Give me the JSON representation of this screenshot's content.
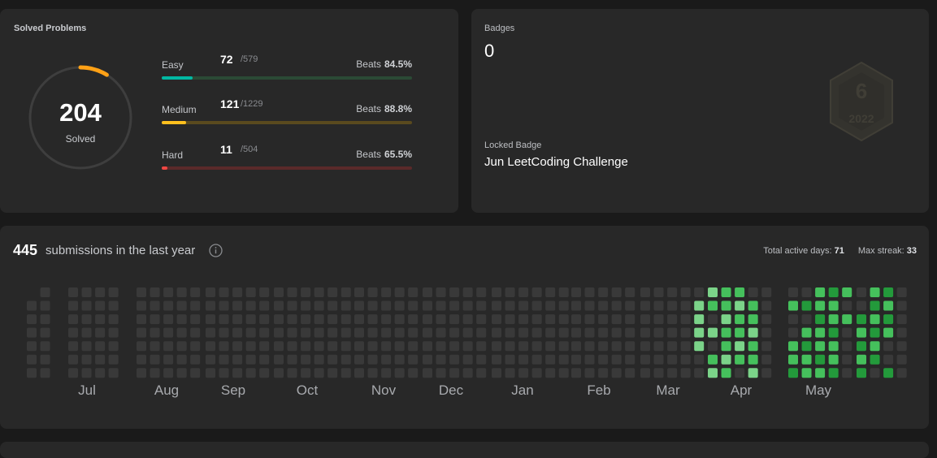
{
  "solved_card": {
    "title": "Solved Problems",
    "total": "204",
    "total_label": "Solved",
    "ring_color": "#ffa116",
    "difficulties": [
      {
        "name": "Easy",
        "solved": "72",
        "total": "/579",
        "beats_label": "Beats",
        "beats": "84.5%",
        "progress": 0.124,
        "fill_color": "#00b8a3",
        "track_color": "#2b4a35"
      },
      {
        "name": "Medium",
        "solved": "121",
        "total": "/1229",
        "beats_label": "Beats",
        "beats": "88.8%",
        "progress": 0.098,
        "fill_color": "#ffc01e",
        "track_color": "#5a4a1e"
      },
      {
        "name": "Hard",
        "solved": "11",
        "total": "/504",
        "beats_label": "Beats",
        "beats": "65.5%",
        "progress": 0.022,
        "fill_color": "#ef4743",
        "track_color": "#5a2a2a"
      }
    ]
  },
  "badges_card": {
    "title": "Badges",
    "count": "0",
    "badge_icon": "jun-2022-badge-icon",
    "badge_number": "6",
    "badge_year": "2022",
    "locked_label": "Locked Badge",
    "locked_name": "Jun LeetCoding Challenge"
  },
  "submissions": {
    "count": "445",
    "text": "submissions in the last year",
    "active_days_label": "Total active days:",
    "active_days": "71",
    "max_streak_label": "Max streak:",
    "max_streak": "33",
    "months": [
      "Jul",
      "Aug",
      "Sep",
      "Oct",
      "Nov",
      "Dec",
      "Jan",
      "Feb",
      "Mar",
      "Apr",
      "May"
    ],
    "colors": [
      "#393939",
      "#196127",
      "#239a3b",
      "#45c05c",
      "#7bd389"
    ]
  }
}
